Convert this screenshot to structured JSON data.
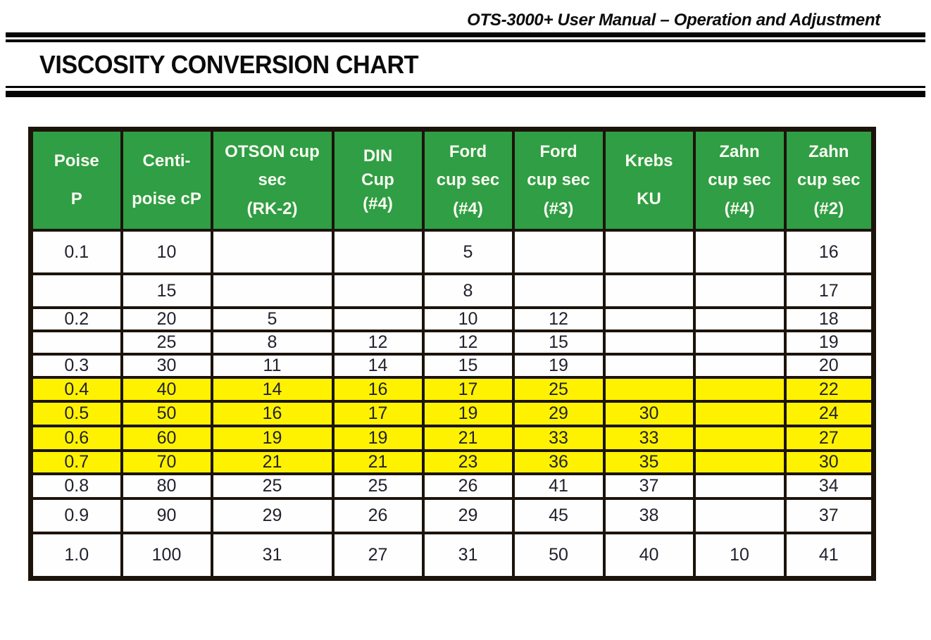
{
  "header": {
    "manual_title": "OTS-3000+ User Manual – Operation and Adjustment"
  },
  "page": {
    "title": "VISCOSITY CONVERSION CHART"
  },
  "colors": {
    "header_green": "#2f9e44",
    "highlight_yellow": "#fff200",
    "border_black": "#1c130b"
  },
  "table": {
    "columns": [
      {
        "id": "poise",
        "lines": [
          "Poise",
          "P"
        ]
      },
      {
        "id": "centipoise",
        "lines": [
          "Centi-",
          "poise cP"
        ]
      },
      {
        "id": "otson-cup-rk2",
        "lines": [
          "OTSON cup",
          "sec",
          "(RK-2)"
        ]
      },
      {
        "id": "din-cup-4",
        "lines": [
          "DIN",
          "Cup",
          "(#4)"
        ]
      },
      {
        "id": "ford-cup-4",
        "lines": [
          "Ford",
          "cup sec",
          "(#4)"
        ]
      },
      {
        "id": "ford-cup-3",
        "lines": [
          "Ford",
          "cup sec",
          "(#3)"
        ]
      },
      {
        "id": "krebs-ku",
        "lines": [
          "Krebs",
          "KU"
        ]
      },
      {
        "id": "zahn-cup-4",
        "lines": [
          "Zahn",
          "cup sec",
          "(#4)"
        ]
      },
      {
        "id": "zahn-cup-2",
        "lines": [
          "Zahn",
          "cup sec",
          "(#2)"
        ]
      }
    ],
    "rows": [
      {
        "highlight": false,
        "values": [
          "0.1",
          "10",
          "",
          "",
          "5",
          "",
          "",
          "",
          "16"
        ]
      },
      {
        "highlight": false,
        "values": [
          "",
          "15",
          "",
          "",
          "8",
          "",
          "",
          "",
          "17"
        ]
      },
      {
        "highlight": false,
        "values": [
          "0.2",
          "20",
          "5",
          "",
          "10",
          "12",
          "",
          "",
          "18"
        ]
      },
      {
        "highlight": false,
        "values": [
          "",
          "25",
          "8",
          "12",
          "12",
          "15",
          "",
          "",
          "19"
        ]
      },
      {
        "highlight": false,
        "values": [
          "0.3",
          "30",
          "11",
          "14",
          "15",
          "19",
          "",
          "",
          "20"
        ]
      },
      {
        "highlight": true,
        "values": [
          "0.4",
          "40",
          "14",
          "16",
          "17",
          "25",
          "",
          "",
          "22"
        ]
      },
      {
        "highlight": true,
        "values": [
          "0.5",
          "50",
          "16",
          "17",
          "19",
          "29",
          "30",
          "",
          "24"
        ]
      },
      {
        "highlight": true,
        "values": [
          "0.6",
          "60",
          "19",
          "19",
          "21",
          "33",
          "33",
          "",
          "27"
        ]
      },
      {
        "highlight": true,
        "values": [
          "0.7",
          "70",
          "21",
          "21",
          "23",
          "36",
          "35",
          "",
          "30"
        ]
      },
      {
        "highlight": false,
        "values": [
          "0.8",
          "80",
          "25",
          "25",
          "26",
          "41",
          "37",
          "",
          "34"
        ]
      },
      {
        "highlight": false,
        "values": [
          "0.9",
          "90",
          "29",
          "26",
          "29",
          "45",
          "38",
          "",
          "37"
        ]
      },
      {
        "highlight": false,
        "values": [
          "1.0",
          "100",
          "31",
          "27",
          "31",
          "50",
          "40",
          "10",
          "41"
        ]
      }
    ]
  }
}
